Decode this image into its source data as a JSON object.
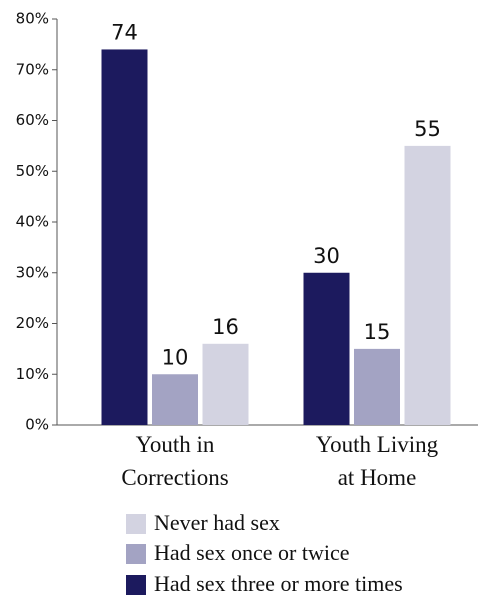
{
  "chart_data": {
    "type": "bar",
    "categories": [
      "Youth in\nCorrections",
      "Youth Living\nat Home"
    ],
    "series": [
      {
        "name": "Had sex three or more times",
        "color": "#1c1a5e",
        "values": [
          74,
          30
        ]
      },
      {
        "name": "Had sex once or twice",
        "color": "#a3a3c3",
        "values": [
          10,
          15
        ]
      },
      {
        "name": "Never had sex",
        "color": "#d3d3e1",
        "values": [
          16,
          55
        ]
      }
    ],
    "ylim": [
      0,
      80
    ],
    "yticks": [
      {
        "value": 0,
        "label": "0%"
      },
      {
        "value": 10,
        "label": "10%"
      },
      {
        "value": 20,
        "label": "20%"
      },
      {
        "value": 30,
        "label": "30%"
      },
      {
        "value": 40,
        "label": "40%"
      },
      {
        "value": 50,
        "label": "50%"
      },
      {
        "value": 60,
        "label": "60%"
      },
      {
        "value": 70,
        "label": "70%"
      },
      {
        "value": 80,
        "label": "80%"
      }
    ],
    "grid": false
  }
}
